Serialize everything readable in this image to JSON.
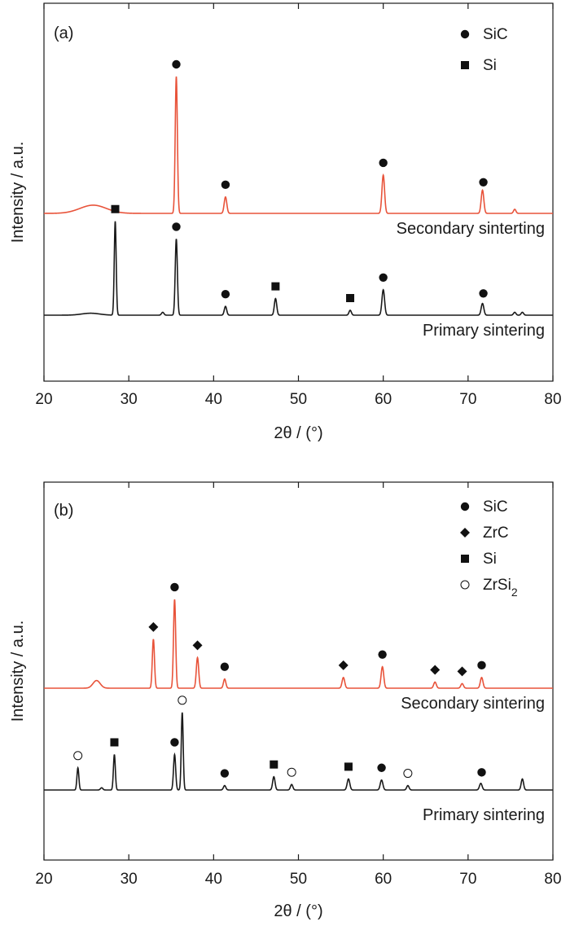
{
  "chart_data": [
    {
      "type": "line",
      "panel_label": "(a)",
      "xlabel": "2θ / (°)",
      "ylabel": "Intensity / a.u.",
      "xlim": [
        20,
        80
      ],
      "xticks": [
        20,
        30,
        40,
        50,
        60,
        70,
        80
      ],
      "legend": {
        "position": "top-right",
        "entries": [
          {
            "marker": "filled-circle",
            "label": "SiC"
          },
          {
            "marker": "filled-square",
            "label": "Si"
          }
        ]
      },
      "series": [
        {
          "name": "Secondary sinterting",
          "color": "#e8533a",
          "peaks": [
            {
              "x": 25.8,
              "height": 0.06,
              "width": 2.2
            },
            {
              "x": 35.6,
              "height": 1.0,
              "width": 0.18
            },
            {
              "x": 41.4,
              "height": 0.12,
              "width": 0.22
            },
            {
              "x": 60.0,
              "height": 0.28,
              "width": 0.22
            },
            {
              "x": 71.7,
              "height": 0.17,
              "width": 0.22
            },
            {
              "x": 75.5,
              "height": 0.03,
              "width": 0.2
            }
          ],
          "markers": [
            {
              "x": 35.6,
              "phase": "SiC"
            },
            {
              "x": 41.4,
              "phase": "SiC"
            },
            {
              "x": 60.0,
              "phase": "SiC"
            },
            {
              "x": 71.8,
              "phase": "SiC"
            }
          ]
        },
        {
          "name": "Primary sintering",
          "color": "#1a1a1a",
          "peaks": [
            {
              "x": 25.5,
              "height": 0.02,
              "width": 1.5
            },
            {
              "x": 28.4,
              "height": 0.96,
              "width": 0.16
            },
            {
              "x": 34.0,
              "height": 0.03,
              "width": 0.2
            },
            {
              "x": 35.6,
              "height": 0.78,
              "width": 0.18
            },
            {
              "x": 41.4,
              "height": 0.09,
              "width": 0.2
            },
            {
              "x": 47.3,
              "height": 0.17,
              "width": 0.2
            },
            {
              "x": 56.1,
              "height": 0.05,
              "width": 0.2
            },
            {
              "x": 60.0,
              "height": 0.26,
              "width": 0.22
            },
            {
              "x": 71.7,
              "height": 0.12,
              "width": 0.22
            },
            {
              "x": 75.5,
              "height": 0.03,
              "width": 0.2
            },
            {
              "x": 76.4,
              "height": 0.03,
              "width": 0.2
            }
          ],
          "markers": [
            {
              "x": 28.4,
              "phase": "Si"
            },
            {
              "x": 35.6,
              "phase": "SiC"
            },
            {
              "x": 41.4,
              "phase": "SiC"
            },
            {
              "x": 47.3,
              "phase": "Si"
            },
            {
              "x": 56.1,
              "phase": "Si"
            },
            {
              "x": 60.0,
              "phase": "SiC"
            },
            {
              "x": 71.8,
              "phase": "SiC"
            }
          ]
        }
      ]
    },
    {
      "type": "line",
      "panel_label": "(b)",
      "xlabel": "2θ / (°)",
      "ylabel": "Intensity / a.u.",
      "xlim": [
        20,
        80
      ],
      "xticks": [
        20,
        30,
        40,
        50,
        60,
        70,
        80
      ],
      "legend": {
        "position": "top-right",
        "entries": [
          {
            "marker": "filled-circle",
            "label": "SiC"
          },
          {
            "marker": "filled-diamond",
            "label": "ZrC"
          },
          {
            "marker": "filled-square",
            "label": "Si"
          },
          {
            "marker": "open-circle",
            "label": "ZrSi",
            "subscript": "2"
          }
        ]
      },
      "series": [
        {
          "name": "Secondary sintering",
          "color": "#e8533a",
          "peaks": [
            {
              "x": 26.2,
              "height": 0.05,
              "width": 0.6
            },
            {
              "x": 32.9,
              "height": 0.32,
              "width": 0.18
            },
            {
              "x": 35.4,
              "height": 0.58,
              "width": 0.18
            },
            {
              "x": 38.1,
              "height": 0.2,
              "width": 0.2
            },
            {
              "x": 41.3,
              "height": 0.06,
              "width": 0.2
            },
            {
              "x": 55.3,
              "height": 0.07,
              "width": 0.22
            },
            {
              "x": 59.9,
              "height": 0.14,
              "width": 0.22
            },
            {
              "x": 66.1,
              "height": 0.04,
              "width": 0.22
            },
            {
              "x": 69.3,
              "height": 0.03,
              "width": 0.22
            },
            {
              "x": 71.6,
              "height": 0.07,
              "width": 0.22
            }
          ],
          "markers": [
            {
              "x": 32.9,
              "phase": "ZrC"
            },
            {
              "x": 35.4,
              "phase": "SiC"
            },
            {
              "x": 38.1,
              "phase": "ZrC"
            },
            {
              "x": 41.3,
              "phase": "SiC"
            },
            {
              "x": 55.3,
              "phase": "ZrC"
            },
            {
              "x": 59.9,
              "phase": "SiC"
            },
            {
              "x": 66.1,
              "phase": "ZrC"
            },
            {
              "x": 69.3,
              "phase": "ZrC"
            },
            {
              "x": 71.6,
              "phase": "SiC"
            }
          ]
        },
        {
          "name": "Primary sintering",
          "color": "#1a1a1a",
          "peaks": [
            {
              "x": 24.0,
              "height": 0.2,
              "width": 0.16
            },
            {
              "x": 26.8,
              "height": 0.02,
              "width": 0.2
            },
            {
              "x": 28.3,
              "height": 0.32,
              "width": 0.16
            },
            {
              "x": 35.4,
              "height": 0.32,
              "width": 0.18
            },
            {
              "x": 36.3,
              "height": 0.7,
              "width": 0.16
            },
            {
              "x": 41.3,
              "height": 0.04,
              "width": 0.2
            },
            {
              "x": 47.1,
              "height": 0.12,
              "width": 0.2
            },
            {
              "x": 49.2,
              "height": 0.05,
              "width": 0.2
            },
            {
              "x": 55.9,
              "height": 0.1,
              "width": 0.22
            },
            {
              "x": 59.8,
              "height": 0.09,
              "width": 0.22
            },
            {
              "x": 62.9,
              "height": 0.04,
              "width": 0.2
            },
            {
              "x": 71.5,
              "height": 0.06,
              "width": 0.22
            },
            {
              "x": 76.4,
              "height": 0.1,
              "width": 0.2
            }
          ],
          "markers": [
            {
              "x": 24.0,
              "phase": "ZrSi2"
            },
            {
              "x": 28.3,
              "phase": "Si"
            },
            {
              "x": 35.4,
              "phase": "SiC"
            },
            {
              "x": 36.3,
              "phase": "ZrSi2"
            },
            {
              "x": 41.3,
              "phase": "SiC"
            },
            {
              "x": 47.1,
              "phase": "Si"
            },
            {
              "x": 49.2,
              "phase": "ZrSi2"
            },
            {
              "x": 55.9,
              "phase": "Si"
            },
            {
              "x": 59.8,
              "phase": "SiC"
            },
            {
              "x": 62.9,
              "phase": "ZrSi2"
            },
            {
              "x": 71.6,
              "phase": "SiC"
            }
          ]
        }
      ]
    }
  ]
}
